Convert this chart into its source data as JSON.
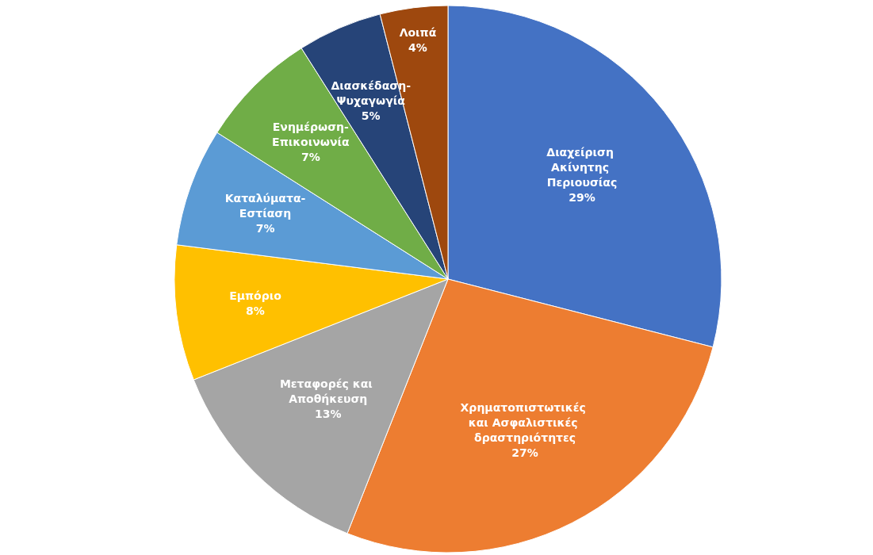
{
  "chart_data": {
    "type": "pie",
    "categories": [
      "Διαχείριση Ακίνητης Περιουσίας",
      "Χρηματοπιστωτικές και Ασφαλιστικές δραστηριότητες",
      "Μεταφορές και Αποθήκευση",
      "Εμπόριο",
      "Καταλύματα-Εστίαση",
      "Ενημέρωση-Επικοινωνία",
      "Διασκέδαση-Ψυχαγωγία",
      "Λοιπά"
    ],
    "values": [
      29,
      27,
      13,
      8,
      7,
      7,
      5,
      4
    ],
    "value_labels": [
      "29%",
      "27%",
      "13%",
      "8%",
      "7%",
      "7%",
      "5%",
      "4%"
    ],
    "colors": [
      "#4472c4",
      "#ed7d31",
      "#a5a5a5",
      "#ffc000",
      "#5b9bd5",
      "#70ad47",
      "#264478",
      "#9e480e"
    ],
    "legend": false
  }
}
